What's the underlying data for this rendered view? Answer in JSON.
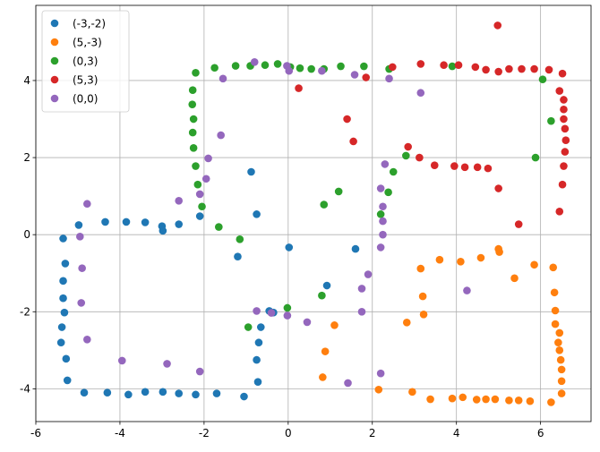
{
  "chart_data": {
    "type": "scatter",
    "title": "",
    "xlabel": "",
    "ylabel": "",
    "xlim": [
      -6,
      7.2
    ],
    "ylim": [
      -4.85,
      5.95
    ],
    "xticks": [
      -6,
      -4,
      -2,
      0,
      2,
      4,
      6
    ],
    "yticks": [
      -4,
      -2,
      0,
      2,
      4
    ],
    "grid": true,
    "legend_position": "upper-left",
    "series": [
      {
        "name": "(-3,-2)",
        "color": "#1f77b4",
        "points": [
          [
            -5.35,
            -0.1
          ],
          [
            -5.3,
            -0.75
          ],
          [
            -5.35,
            -1.2
          ],
          [
            -5.35,
            -1.65
          ],
          [
            -5.32,
            -2.02
          ],
          [
            -5.38,
            -2.4
          ],
          [
            -5.4,
            -2.8
          ],
          [
            -5.28,
            -3.22
          ],
          [
            -5.25,
            -3.78
          ],
          [
            -4.85,
            -4.1
          ],
          [
            -4.3,
            -4.1
          ],
          [
            -3.8,
            -4.15
          ],
          [
            -3.4,
            -4.08
          ],
          [
            -2.98,
            -4.08
          ],
          [
            -2.6,
            -4.12
          ],
          [
            -2.2,
            -4.15
          ],
          [
            -1.7,
            -4.12
          ],
          [
            -1.05,
            -4.2
          ],
          [
            -4.98,
            0.25
          ],
          [
            -4.35,
            0.33
          ],
          [
            -3.85,
            0.33
          ],
          [
            -3.4,
            0.32
          ],
          [
            -3.0,
            0.22
          ],
          [
            -2.98,
            0.1
          ],
          [
            -2.6,
            0.27
          ],
          [
            -2.1,
            0.48
          ],
          [
            -1.2,
            -0.57
          ],
          [
            -0.88,
            1.63
          ],
          [
            -0.75,
            0.53
          ],
          [
            -0.7,
            -2.8
          ],
          [
            -0.65,
            -2.4
          ],
          [
            -0.75,
            -3.25
          ],
          [
            -0.72,
            -3.82
          ],
          [
            -0.45,
            -1.98
          ],
          [
            -0.35,
            -2.02
          ],
          [
            0.02,
            -0.33
          ],
          [
            0.92,
            -1.32
          ],
          [
            1.6,
            -0.37
          ]
        ]
      },
      {
        "name": "(5,-3)",
        "color": "#ff7f0e",
        "points": [
          [
            3.15,
            -0.88
          ],
          [
            3.2,
            -1.6
          ],
          [
            3.22,
            -2.07
          ],
          [
            2.82,
            -2.28
          ],
          [
            2.95,
            -4.08
          ],
          [
            2.15,
            -4.02
          ],
          [
            3.38,
            -4.27
          ],
          [
            3.6,
            -0.65
          ],
          [
            3.9,
            -4.25
          ],
          [
            4.15,
            -4.22
          ],
          [
            4.1,
            -0.7
          ],
          [
            4.48,
            -4.28
          ],
          [
            4.58,
            -0.6
          ],
          [
            4.7,
            -4.27
          ],
          [
            4.92,
            -4.27
          ],
          [
            5.0,
            -0.37
          ],
          [
            5.02,
            -0.45
          ],
          [
            5.25,
            -4.3
          ],
          [
            5.38,
            -1.13
          ],
          [
            5.48,
            -4.3
          ],
          [
            5.75,
            -4.32
          ],
          [
            5.85,
            -0.78
          ],
          [
            6.25,
            -4.35
          ],
          [
            6.3,
            -0.85
          ],
          [
            6.33,
            -1.5
          ],
          [
            6.35,
            -1.97
          ],
          [
            6.35,
            -2.32
          ],
          [
            6.45,
            -2.55
          ],
          [
            6.42,
            -2.8
          ],
          [
            6.45,
            -3.0
          ],
          [
            6.48,
            -3.25
          ],
          [
            6.5,
            -3.5
          ],
          [
            6.5,
            -3.8
          ],
          [
            6.5,
            -4.12
          ],
          [
            0.82,
            -3.7
          ],
          [
            0.88,
            -3.03
          ],
          [
            1.1,
            -2.35
          ]
        ]
      },
      {
        "name": "(0,3)",
        "color": "#2ca02c",
        "points": [
          [
            -2.2,
            4.2
          ],
          [
            -1.75,
            4.33
          ],
          [
            -1.25,
            4.38
          ],
          [
            -0.9,
            4.38
          ],
          [
            -0.55,
            4.4
          ],
          [
            -0.25,
            4.43
          ],
          [
            0.05,
            4.35
          ],
          [
            0.28,
            4.32
          ],
          [
            0.55,
            4.3
          ],
          [
            0.85,
            4.3
          ],
          [
            1.25,
            4.37
          ],
          [
            1.8,
            4.37
          ],
          [
            2.4,
            4.3
          ],
          [
            -2.27,
            3.75
          ],
          [
            -2.28,
            3.38
          ],
          [
            -2.25,
            3.0
          ],
          [
            -2.27,
            2.65
          ],
          [
            -2.25,
            2.25
          ],
          [
            -2.2,
            1.78
          ],
          [
            -2.15,
            1.3
          ],
          [
            -2.05,
            0.73
          ],
          [
            -1.65,
            0.2
          ],
          [
            -1.15,
            -0.12
          ],
          [
            -0.95,
            -2.4
          ],
          [
            -0.02,
            -1.9
          ],
          [
            0.8,
            -1.58
          ],
          [
            0.85,
            0.78
          ],
          [
            1.2,
            1.12
          ],
          [
            2.2,
            0.53
          ],
          [
            2.38,
            1.1
          ],
          [
            2.5,
            1.63
          ],
          [
            2.8,
            2.05
          ],
          [
            3.9,
            4.37
          ],
          [
            5.88,
            2.0
          ],
          [
            6.05,
            4.03
          ],
          [
            6.25,
            2.95
          ]
        ]
      },
      {
        "name": "(5,3)",
        "color": "#d62728",
        "points": [
          [
            0.25,
            3.8
          ],
          [
            1.4,
            3.0
          ],
          [
            1.55,
            2.42
          ],
          [
            1.85,
            4.08
          ],
          [
            2.48,
            4.35
          ],
          [
            2.85,
            2.28
          ],
          [
            3.12,
            2.0
          ],
          [
            3.15,
            4.43
          ],
          [
            3.48,
            1.8
          ],
          [
            3.7,
            4.4
          ],
          [
            3.95,
            1.78
          ],
          [
            4.05,
            4.4
          ],
          [
            4.2,
            1.75
          ],
          [
            4.45,
            4.35
          ],
          [
            4.5,
            1.75
          ],
          [
            4.7,
            4.28
          ],
          [
            4.75,
            1.72
          ],
          [
            4.98,
            5.43
          ],
          [
            5.0,
            4.23
          ],
          [
            5.0,
            1.2
          ],
          [
            5.25,
            4.3
          ],
          [
            5.48,
            0.27
          ],
          [
            5.55,
            4.3
          ],
          [
            5.85,
            4.3
          ],
          [
            6.2,
            4.28
          ],
          [
            6.45,
            0.6
          ],
          [
            6.52,
            4.18
          ],
          [
            6.45,
            3.73
          ],
          [
            6.55,
            3.5
          ],
          [
            6.55,
            3.25
          ],
          [
            6.55,
            3.0
          ],
          [
            6.58,
            2.75
          ],
          [
            6.6,
            2.45
          ],
          [
            6.58,
            2.15
          ],
          [
            6.55,
            1.78
          ],
          [
            6.52,
            1.3
          ]
        ]
      },
      {
        "name": "(0,0)",
        "color": "#9467bd",
        "points": [
          [
            -0.8,
            4.48
          ],
          [
            -1.55,
            4.05
          ],
          [
            -1.6,
            2.58
          ],
          [
            -1.9,
            1.98
          ],
          [
            -1.95,
            1.45
          ],
          [
            -2.1,
            1.05
          ],
          [
            -2.6,
            0.88
          ],
          [
            -4.78,
            0.8
          ],
          [
            -4.95,
            -0.05
          ],
          [
            -4.9,
            -0.87
          ],
          [
            -4.92,
            -1.77
          ],
          [
            -4.78,
            -2.72
          ],
          [
            -3.95,
            -3.27
          ],
          [
            -2.88,
            -3.35
          ],
          [
            -2.1,
            -3.55
          ],
          [
            -0.75,
            -1.98
          ],
          [
            -0.4,
            -2.03
          ],
          [
            -0.02,
            -2.1
          ],
          [
            0.45,
            -2.27
          ],
          [
            1.42,
            -3.85
          ],
          [
            1.75,
            -2.0
          ],
          [
            1.75,
            -1.4
          ],
          [
            1.9,
            -1.03
          ],
          [
            2.2,
            -3.6
          ],
          [
            2.2,
            -0.33
          ],
          [
            2.25,
            0.0
          ],
          [
            2.25,
            0.35
          ],
          [
            2.25,
            0.73
          ],
          [
            2.2,
            1.2
          ],
          [
            2.3,
            1.83
          ],
          [
            2.4,
            4.05
          ],
          [
            1.58,
            4.15
          ],
          [
            0.8,
            4.25
          ],
          [
            0.02,
            4.25
          ],
          [
            -0.03,
            4.38
          ],
          [
            3.15,
            3.68
          ],
          [
            4.25,
            -1.45
          ]
        ]
      }
    ]
  }
}
